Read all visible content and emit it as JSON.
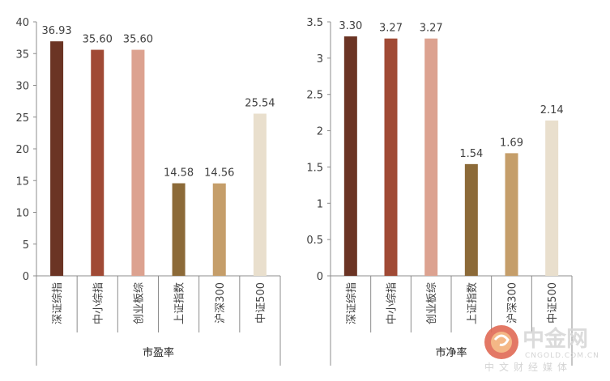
{
  "chart_data": [
    {
      "type": "bar",
      "title": "",
      "xlabel": "市盈率",
      "ylabel": "",
      "ylim": [
        0,
        40
      ],
      "yticks": [
        0,
        5,
        10,
        15,
        20,
        25,
        30,
        35,
        40
      ],
      "ytick_labels": [
        "0",
        "5",
        "10",
        "15",
        "20",
        "25",
        "30",
        "35",
        "40"
      ],
      "categories": [
        "深证综指",
        "中小综指",
        "创业板综",
        "上证指数",
        "沪深300",
        "中证500"
      ],
      "values": [
        36.93,
        35.6,
        35.6,
        14.58,
        14.56,
        25.54
      ],
      "value_labels": [
        "36.93",
        "35.60",
        "35.60",
        "14.58",
        "14.56",
        "25.54"
      ],
      "colors": [
        "#6b3424",
        "#a04a35",
        "#dca290",
        "#8c6a38",
        "#c59e6a",
        "#e9dfcd"
      ],
      "grid": false,
      "legend": "none"
    },
    {
      "type": "bar",
      "title": "",
      "xlabel": "市净率",
      "ylabel": "",
      "ylim": [
        0,
        3.5
      ],
      "yticks": [
        0,
        0.5,
        1,
        1.5,
        2,
        2.5,
        3,
        3.5
      ],
      "ytick_labels": [
        "0",
        "0.5",
        "1",
        "1.5",
        "2",
        "2.5",
        "3",
        "3.5"
      ],
      "categories": [
        "深证综指",
        "中小综指",
        "创业板综",
        "上证指数",
        "沪深300",
        "中证500"
      ],
      "values": [
        3.3,
        3.27,
        3.27,
        1.54,
        1.69,
        2.14
      ],
      "value_labels": [
        "3.30",
        "3.27",
        "3.27",
        "1.54",
        "1.69",
        "2.14"
      ],
      "colors": [
        "#6b3424",
        "#a04a35",
        "#dca290",
        "#8c6a38",
        "#c59e6a",
        "#e9dfcd"
      ],
      "grid": false,
      "legend": "none"
    }
  ],
  "watermark": {
    "title": "中金网",
    "site": "CNGOLD.COM.CN",
    "tagline": "中文财经媒体",
    "logo_color": "#d9534f"
  }
}
